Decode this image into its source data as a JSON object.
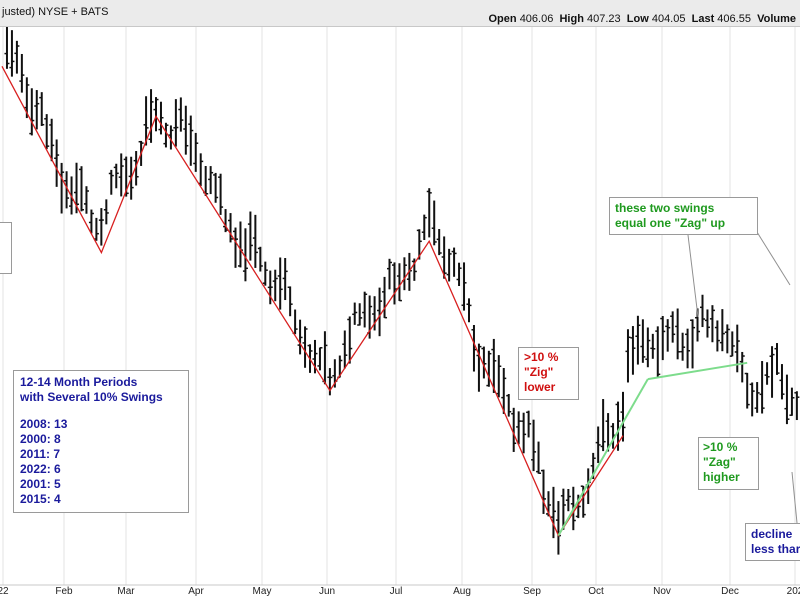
{
  "header": {
    "left_text": "justed) NYSE + BATS",
    "open_label": "Open",
    "open_value": "406.06",
    "high_label": "High",
    "high_value": "407.23",
    "low_label": "Low",
    "low_value": "404.05",
    "last_label": "Last",
    "last_value": "406.55",
    "volume_label": "Volume"
  },
  "annotations": {
    "periods": {
      "title_lines": [
        "12-14 Month Periods",
        "with Several 10% Swings"
      ],
      "items": [
        "2008: 13",
        "2000: 8",
        "2011: 7",
        "2022: 6",
        "2001: 5",
        "2015: 4"
      ]
    },
    "swings": [
      "these two swings",
      "equal one \"Zag\" up"
    ],
    "zig": [
      ">10 %",
      "\"Zig\"",
      "lower"
    ],
    "zag": [
      ">10 %",
      "\"Zag\"",
      "higher"
    ],
    "decline": [
      "decline",
      "less thar"
    ]
  },
  "colors": {
    "bars": "#111111",
    "zigzag": "#d82020",
    "swing_lines": "#7ddc8c",
    "grid": "#e3e3e3",
    "callout_line": "#909090"
  },
  "chart_data": {
    "type": "bar",
    "style": "ohlc",
    "x_axis_labels": [
      "22",
      "Feb",
      "Mar",
      "Apr",
      "May",
      "Jun",
      "Jul",
      "Aug",
      "Sep",
      "Oct",
      "Nov",
      "Dec",
      "202"
    ],
    "y_axis_labels": [],
    "zigzag": {
      "points": [
        [
          0,
          94.6
        ],
        [
          20,
          60.3
        ],
        [
          31,
          85.4
        ],
        [
          66,
          34.9
        ],
        [
          86,
          62.4
        ],
        [
          112,
          8.2
        ],
        [
          125,
          26.6
        ]
      ],
      "note": "positions on a 0-125 session index; values on a 0-100 relative price scale (no price axis visible)"
    },
    "swing_lines": [
      [
        [
          112,
          8.2
        ],
        [
          130,
          37.0
        ]
      ],
      [
        [
          130,
          37.0
        ],
        [
          150,
          40.0
        ]
      ]
    ],
    "grid": true,
    "legend": "none"
  }
}
